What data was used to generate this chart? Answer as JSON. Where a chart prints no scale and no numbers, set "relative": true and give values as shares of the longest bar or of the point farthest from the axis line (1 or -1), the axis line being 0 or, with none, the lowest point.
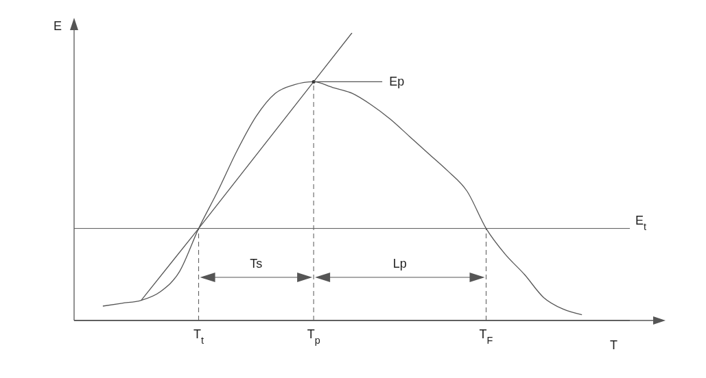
{
  "chart_data": {
    "type": "line",
    "relative": true,
    "xlabel": "T",
    "ylabel": "E",
    "categories": [
      null,
      null,
      null,
      null,
      null,
      "T$_{t}$",
      null,
      null,
      null,
      null,
      null,
      "T$_{p}$",
      null,
      null,
      null,
      null,
      null,
      null,
      null,
      null,
      "T$_{F}$",
      null,
      null,
      null,
      null,
      null
    ],
    "series": [
      {
        "color": "#555555",
        "values": [
          0.05,
          0.06,
          0.07,
          0.1,
          0.17,
          0.32,
          0.45,
          0.59,
          0.71,
          0.79,
          0.82,
          0.83,
          0.81,
          0.79,
          0.75,
          0.7,
          0.64,
          0.58,
          0.52,
          0.45,
          0.32,
          0.23,
          0.16,
          0.08,
          0.04,
          0.02
        ]
      },
      {
        "color": "#555555",
        "values": [
          null,
          null,
          0.07,
          null,
          null,
          0.32,
          null,
          null,
          null,
          null,
          null,
          0.83,
          null,
          1,
          null,
          null,
          null,
          null,
          null,
          null,
          null,
          null,
          null,
          null,
          null,
          null
        ]
      }
    ],
    "ref_lines": [
      {
        "axis": "y",
        "value": 0.32,
        "label": "E$_{t}$"
      },
      {
        "axis": "x",
        "value": "T$_{t}$",
        "line_style": "dashed"
      },
      {
        "axis": "x",
        "value": "T$_{p}$",
        "line_style": "dashed"
      },
      {
        "axis": "x",
        "value": "T$_{F}$",
        "line_style": "dashed"
      }
    ],
    "annotations": [
      {
        "text": "Ep",
        "x": "T$_{p}$",
        "y": 0.83
      },
      "Ts",
      "Lp"
    ],
    "legend": false,
    "grid": false,
    "marker": "none",
    "line_style": "solid"
  }
}
